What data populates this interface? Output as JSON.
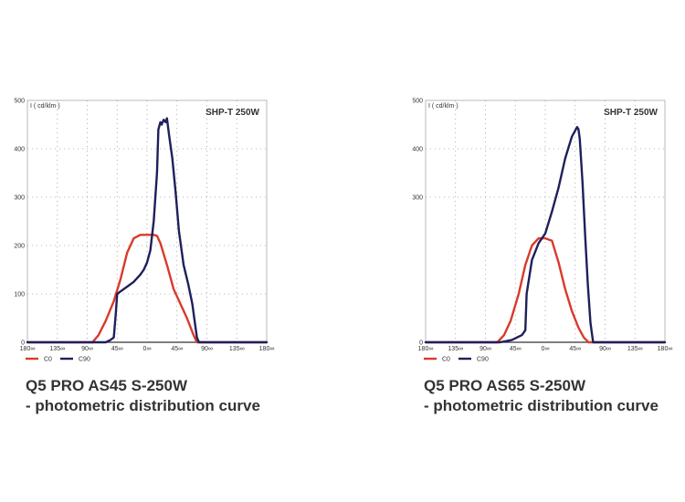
{
  "charts": [
    {
      "caption_line1": "Q5 PRO AS45 S-250W",
      "caption_line2": "- photometric distribution curve"
    },
    {
      "caption_line1": "Q5 PRO AS65 S-250W",
      "caption_line2": "- photometric distribution curve"
    }
  ],
  "chart_data": [
    {
      "type": "line",
      "title": "SHP-T 250W",
      "ylabel": "I ( cd/klm )",
      "xlim": [
        -180,
        180
      ],
      "ylim": [
        0,
        500
      ],
      "grid": true,
      "legend_position": "bottom-left",
      "x_ticks": [
        {
          "value": -180,
          "label": "180∞"
        },
        {
          "value": -135,
          "label": "135∞"
        },
        {
          "value": -90,
          "label": "90∞"
        },
        {
          "value": -45,
          "label": "45∞"
        },
        {
          "value": 0,
          "label": "0∞"
        },
        {
          "value": 45,
          "label": "45∞"
        },
        {
          "value": 90,
          "label": "90∞"
        },
        {
          "value": 135,
          "label": "135∞"
        },
        {
          "value": 180,
          "label": "180∞"
        }
      ],
      "y_ticks": [
        {
          "value": 0,
          "label": "0"
        },
        {
          "value": 100,
          "label": "100"
        },
        {
          "value": 200,
          "label": "200"
        },
        {
          "value": 300,
          "label": "300"
        },
        {
          "value": 400,
          "label": "400"
        },
        {
          "value": 500,
          "label": "500"
        }
      ],
      "series": [
        {
          "name": "C0",
          "color": "#d93a2b",
          "x": [
            -180,
            -82,
            -73,
            -62,
            -50,
            -40,
            -30,
            -20,
            -10,
            0,
            10,
            15,
            20,
            30,
            40,
            50,
            60,
            70,
            75,
            180
          ],
          "y": [
            0,
            0,
            15,
            45,
            85,
            130,
            185,
            215,
            222,
            222,
            222,
            220,
            205,
            160,
            110,
            80,
            50,
            15,
            0,
            0
          ]
        },
        {
          "name": "C90",
          "color": "#1f1f5c",
          "x": [
            -180,
            -62,
            -55,
            -50,
            -47,
            -45,
            -40,
            -30,
            -20,
            -10,
            -5,
            0,
            5,
            10,
            15,
            17,
            20,
            22,
            25,
            28,
            30,
            33,
            38,
            43,
            48,
            55,
            62,
            68,
            72,
            75,
            78,
            180
          ],
          "y": [
            0,
            0,
            5,
            10,
            60,
            100,
            105,
            115,
            125,
            140,
            150,
            165,
            190,
            250,
            350,
            440,
            455,
            450,
            460,
            455,
            463,
            430,
            380,
            310,
            230,
            160,
            120,
            80,
            40,
            10,
            0,
            0
          ]
        }
      ]
    },
    {
      "type": "line",
      "title": "SHP-T 250W",
      "ylabel": "I ( cd/klm )",
      "xlim": [
        -180,
        180
      ],
      "ylim": [
        0,
        500
      ],
      "grid": true,
      "legend_position": "bottom-left",
      "x_ticks": [
        {
          "value": -180,
          "label": "180∞"
        },
        {
          "value": -135,
          "label": "135∞"
        },
        {
          "value": -90,
          "label": "90∞"
        },
        {
          "value": -45,
          "label": "45∞"
        },
        {
          "value": 0,
          "label": "0∞"
        },
        {
          "value": 45,
          "label": "45∞"
        },
        {
          "value": 90,
          "label": "90∞"
        },
        {
          "value": 135,
          "label": "135∞"
        },
        {
          "value": 180,
          "label": "180∞"
        }
      ],
      "y_ticks": [
        {
          "value": 0,
          "label": "0"
        },
        {
          "value": 300,
          "label": "300"
        },
        {
          "value": 400,
          "label": "400"
        },
        {
          "value": 500,
          "label": "500"
        }
      ],
      "series": [
        {
          "name": "C0",
          "color": "#d93a2b",
          "x": [
            -180,
            -72,
            -62,
            -52,
            -40,
            -30,
            -20,
            -10,
            0,
            10,
            20,
            30,
            40,
            50,
            58,
            65,
            180
          ],
          "y": [
            0,
            0,
            15,
            45,
            100,
            160,
            200,
            215,
            215,
            210,
            165,
            110,
            65,
            30,
            10,
            0,
            0
          ]
        },
        {
          "name": "C90",
          "color": "#1f1f5c",
          "x": [
            -180,
            -68,
            -50,
            -35,
            -30,
            -28,
            -20,
            -10,
            0,
            10,
            20,
            30,
            40,
            48,
            50,
            52,
            56,
            60,
            64,
            68,
            72,
            180
          ],
          "y": [
            0,
            0,
            5,
            15,
            25,
            100,
            170,
            205,
            225,
            270,
            320,
            380,
            425,
            445,
            440,
            420,
            330,
            220,
            120,
            40,
            0,
            0
          ]
        }
      ]
    }
  ]
}
